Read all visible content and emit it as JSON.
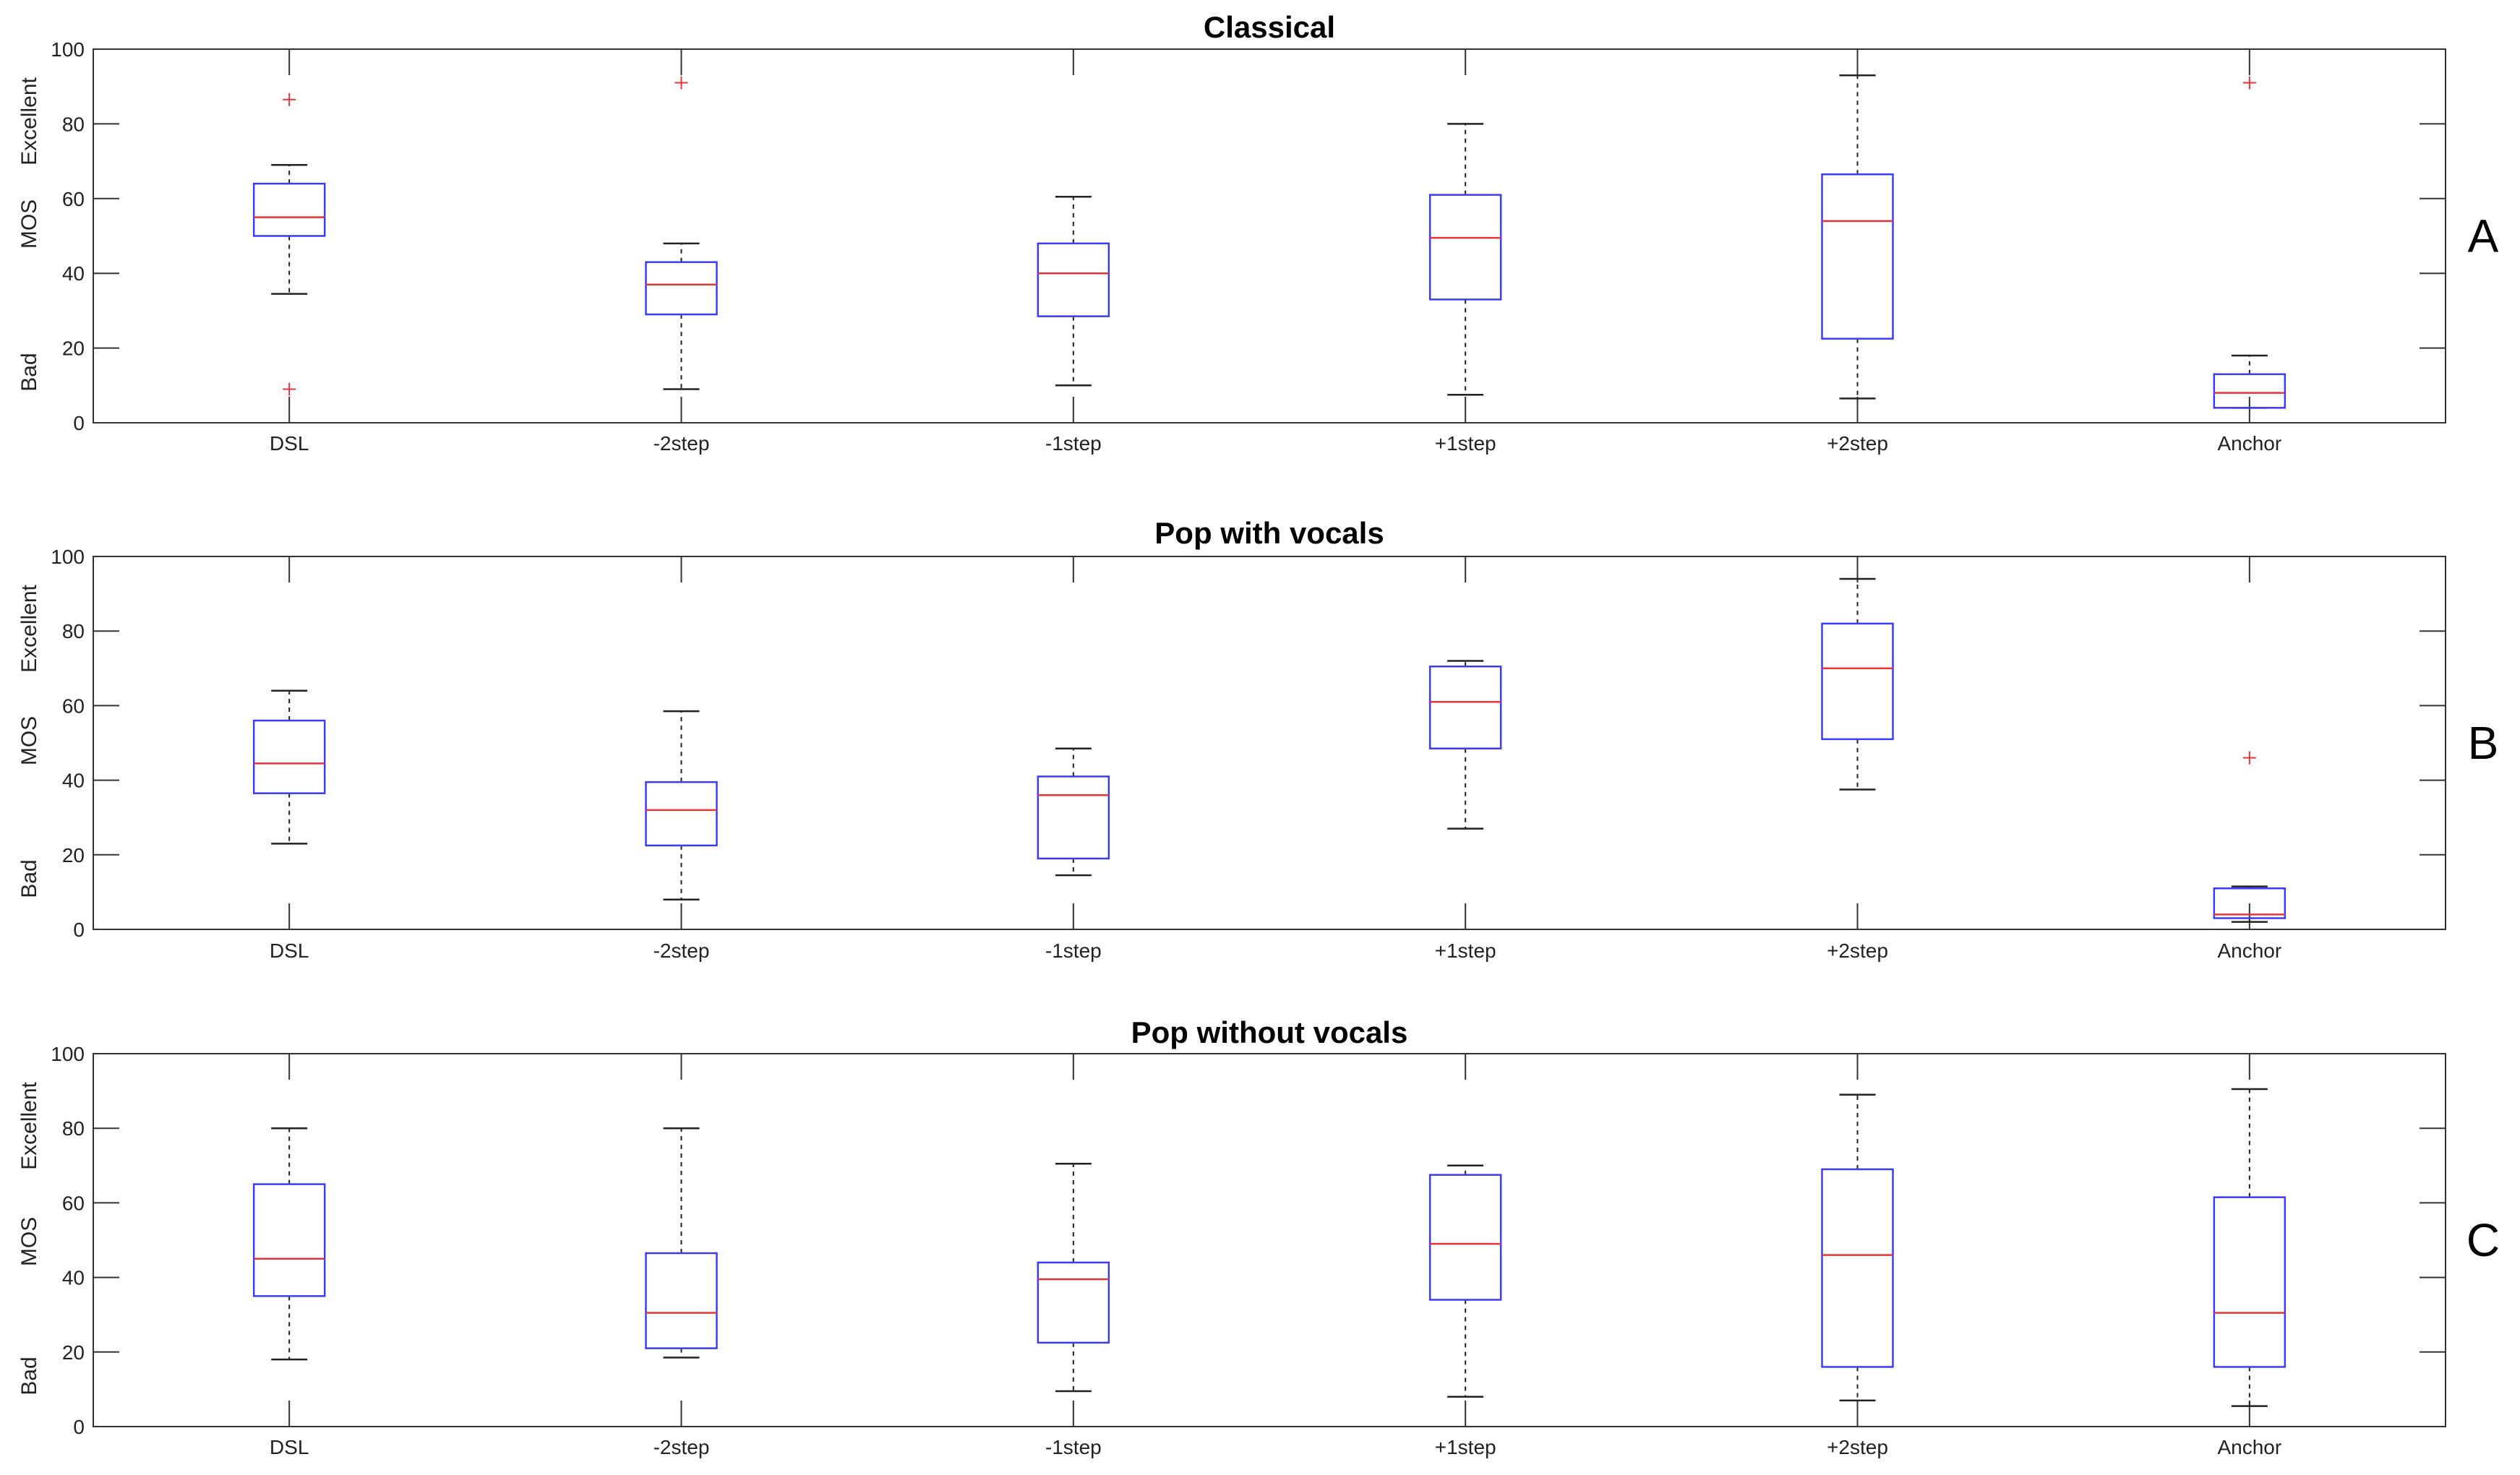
{
  "chart_data": [
    {
      "type": "boxplot",
      "panel_label": "A",
      "title": "Classical",
      "ylabel": "MOS",
      "ylabel_low": "Bad",
      "ylabel_high": "Excellent",
      "ylim": [
        0,
        100
      ],
      "yticks": [
        0,
        20,
        40,
        60,
        80,
        100
      ],
      "categories": [
        "DSL",
        "-2step",
        "-1step",
        "+1step",
        "+2step",
        "Anchor"
      ],
      "boxes": [
        {
          "whisker_low": 34.5,
          "q1": 50,
          "median": 55,
          "q3": 64,
          "whisker_high": 69,
          "outliers": [
            86.5,
            9
          ]
        },
        {
          "whisker_low": 9,
          "q1": 29,
          "median": 37,
          "q3": 43,
          "whisker_high": 48,
          "outliers": [
            91
          ]
        },
        {
          "whisker_low": 10,
          "q1": 28.5,
          "median": 40,
          "q3": 48,
          "whisker_high": 60.5,
          "outliers": []
        },
        {
          "whisker_low": 7.5,
          "q1": 33,
          "median": 49.5,
          "q3": 61,
          "whisker_high": 80,
          "outliers": []
        },
        {
          "whisker_low": 6.5,
          "q1": 22.5,
          "median": 54,
          "q3": 66.5,
          "whisker_high": 93,
          "outliers": []
        },
        {
          "whisker_low": 4,
          "q1": 4,
          "median": 8,
          "q3": 13,
          "whisker_high": 18,
          "outliers": [
            91
          ]
        }
      ]
    },
    {
      "type": "boxplot",
      "panel_label": "B",
      "title": "Pop with vocals",
      "ylabel": "MOS",
      "ylabel_low": "Bad",
      "ylabel_high": "Excellent",
      "ylim": [
        0,
        100
      ],
      "yticks": [
        0,
        20,
        40,
        60,
        80,
        100
      ],
      "categories": [
        "DSL",
        "-2step",
        "-1step",
        "+1step",
        "+2step",
        "Anchor"
      ],
      "boxes": [
        {
          "whisker_low": 23,
          "q1": 36.5,
          "median": 44.5,
          "q3": 56,
          "whisker_high": 64,
          "outliers": []
        },
        {
          "whisker_low": 8,
          "q1": 22.5,
          "median": 32,
          "q3": 39.5,
          "whisker_high": 58.5,
          "outliers": []
        },
        {
          "whisker_low": 14.5,
          "q1": 19,
          "median": 36,
          "q3": 41,
          "whisker_high": 48.5,
          "outliers": []
        },
        {
          "whisker_low": 27,
          "q1": 48.5,
          "median": 61,
          "q3": 70.5,
          "whisker_high": 72,
          "outliers": []
        },
        {
          "whisker_low": 37.5,
          "q1": 51,
          "median": 70,
          "q3": 82,
          "whisker_high": 94,
          "outliers": []
        },
        {
          "whisker_low": 2,
          "q1": 3,
          "median": 4,
          "q3": 11,
          "whisker_high": 11.5,
          "outliers": [
            46
          ]
        }
      ]
    },
    {
      "type": "boxplot",
      "panel_label": "C",
      "title": "Pop without vocals",
      "ylabel": "MOS",
      "ylabel_low": "Bad",
      "ylabel_high": "Excellent",
      "ylim": [
        0,
        100
      ],
      "yticks": [
        0,
        20,
        40,
        60,
        80,
        100
      ],
      "categories": [
        "DSL",
        "-2step",
        "-1step",
        "+1step",
        "+2step",
        "Anchor"
      ],
      "boxes": [
        {
          "whisker_low": 18,
          "q1": 35,
          "median": 45,
          "q3": 65,
          "whisker_high": 80,
          "outliers": []
        },
        {
          "whisker_low": 18.5,
          "q1": 21,
          "median": 30.5,
          "q3": 46.5,
          "whisker_high": 80,
          "outliers": []
        },
        {
          "whisker_low": 9.5,
          "q1": 22.5,
          "median": 39.5,
          "q3": 44,
          "whisker_high": 70.5,
          "outliers": []
        },
        {
          "whisker_low": 8,
          "q1": 34,
          "median": 49,
          "q3": 67.5,
          "whisker_high": 70,
          "outliers": []
        },
        {
          "whisker_low": 7,
          "q1": 16,
          "median": 46,
          "q3": 69,
          "whisker_high": 89,
          "outliers": []
        },
        {
          "whisker_low": 5.5,
          "q1": 16,
          "median": 30.5,
          "q3": 61.5,
          "whisker_high": 90.5,
          "outliers": []
        }
      ]
    }
  ],
  "colors": {
    "box": "#3b3bff",
    "median": "#e8333a",
    "whisker": "#222222",
    "outlier": "#e8333a",
    "axis": "#333333",
    "text": "#222222"
  }
}
